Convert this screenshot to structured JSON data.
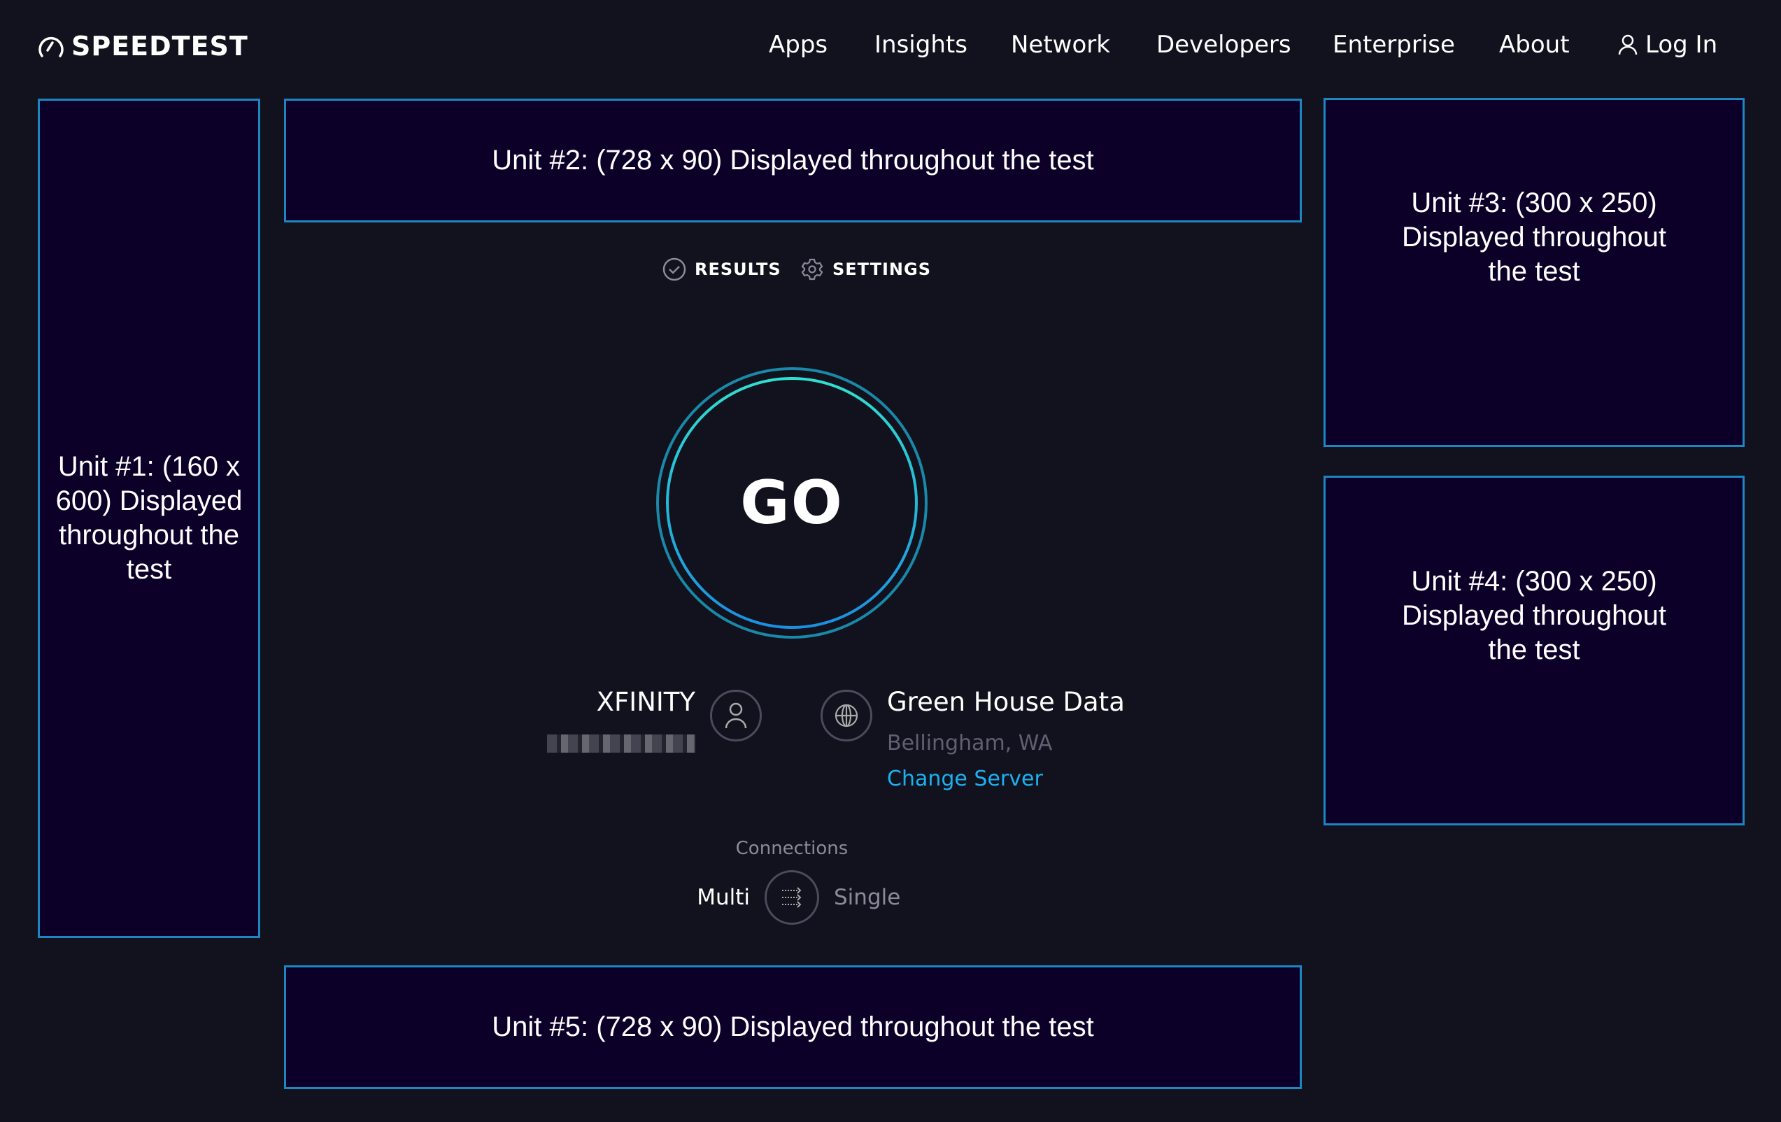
{
  "header": {
    "logo_text": "SPEEDTEST",
    "nav": [
      "Apps",
      "Insights",
      "Network",
      "Developers",
      "Enterprise",
      "About"
    ],
    "login_label": "Log In"
  },
  "ads": {
    "unit1": "Unit #1: (160 x 600) Displayed throughout the test",
    "unit2": "Unit #2: (728 x 90) Displayed throughout the test",
    "unit3": "Unit #3: (300 x 250) Displayed throughout the test",
    "unit4": "Unit #4: (300 x 250) Displayed throughout the test",
    "unit5": "Unit #5: (728 x 90) Displayed throughout the test"
  },
  "tabs": {
    "results": "RESULTS",
    "settings": "SETTINGS"
  },
  "go_label": "GO",
  "isp": {
    "name": "XFINITY"
  },
  "server": {
    "name": "Green House Data",
    "location": "Bellingham, WA",
    "change_label": "Change Server"
  },
  "connections": {
    "label": "Connections",
    "multi": "Multi",
    "single": "Single",
    "selected": "Multi"
  },
  "colors": {
    "background": "#11121d",
    "ad_fill": "#0c0029",
    "ad_border": "#1b86c2",
    "link": "#1cb0f0",
    "ring_outer": "#1a88a8",
    "ring_inner_start": "#2fe0d0",
    "ring_inner_end": "#1b8fe0"
  }
}
